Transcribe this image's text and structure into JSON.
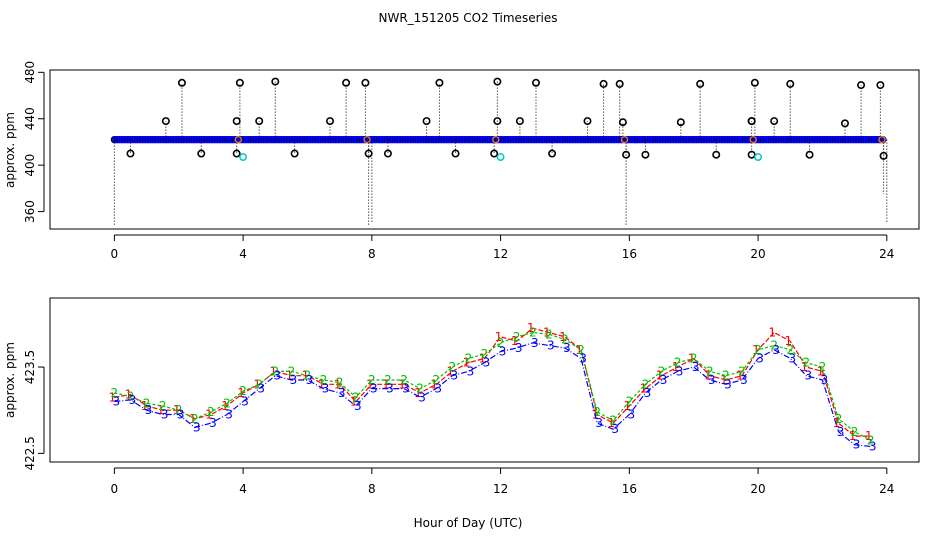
{
  "title": "NWR_151205  CO2 Timeseries",
  "xlabel": "Hour of Day (UTC)",
  "colors": {
    "black": "#000000",
    "blue": "#0000ff",
    "cyan": "#00c8c8",
    "red": "#ff0000",
    "green": "#00c000",
    "orange": "#ff8000"
  },
  "chart_data": [
    {
      "type": "scatter",
      "panel": "top",
      "ylabel": "approx. ppm",
      "xlim": [
        -2,
        25
      ],
      "ylim": [
        345,
        482
      ],
      "xticks": [
        0,
        4,
        8,
        12,
        16,
        20,
        24
      ],
      "yticks": [
        360,
        400,
        440,
        480
      ],
      "baseline_value": 422,
      "series": [
        {
          "name": "baseline (black/blue)",
          "x_range": [
            0,
            23.9
          ],
          "values_approx": 422
        },
        {
          "name": "black high spikes",
          "x": [
            1.6,
            2.1,
            3.9,
            4.5,
            5.0,
            6.7,
            7.2,
            7.8,
            9.7,
            10.1,
            11.9,
            12.6,
            13.1,
            14.7,
            15.2,
            15.7,
            15.8,
            17.6,
            18.2,
            19.8,
            19.9,
            20.5,
            21.0,
            22.7,
            23.2,
            23.8
          ],
          "y": [
            438,
            471,
            471,
            438,
            472,
            438,
            471,
            471,
            438,
            471,
            472,
            438,
            471,
            438,
            470,
            470,
            437,
            437,
            470,
            438,
            471,
            438,
            470,
            436,
            469,
            469
          ]
        },
        {
          "name": "black secondary spikes",
          "x": [
            3.8,
            11.9,
            19.8
          ],
          "y": [
            438,
            438,
            438
          ]
        },
        {
          "name": "black low points",
          "x": [
            0.5,
            2.7,
            3.8,
            5.6,
            7.9,
            8.5,
            10.6,
            11.8,
            13.6,
            15.9,
            16.5,
            18.7,
            19.8,
            21.6,
            23.9
          ],
          "y": [
            410,
            410,
            410,
            410,
            410,
            410,
            410,
            410,
            410,
            409,
            409,
            409,
            409,
            409,
            408
          ]
        },
        {
          "name": "cyan low points",
          "x": [
            4.0,
            12.0,
            20.0
          ],
          "y": [
            407,
            407,
            407
          ]
        },
        {
          "name": "dotted deep dips",
          "x": [
            0.0,
            7.9,
            8.0,
            15.9,
            23.9,
            24.0
          ],
          "y": [
            348,
            348,
            350,
            348,
            375,
            350
          ]
        }
      ]
    },
    {
      "type": "line",
      "panel": "bottom",
      "ylabel": "approx. ppm",
      "xlim": [
        -2,
        25
      ],
      "ylim": [
        422.4,
        424.3
      ],
      "xticks": [
        0,
        4,
        8,
        12,
        16,
        20,
        24
      ],
      "yticks": [
        422.5,
        423.5
      ],
      "marker_labels": [
        "1",
        "2",
        "3"
      ],
      "x": [
        0,
        0.5,
        1,
        1.5,
        2,
        2.5,
        3,
        3.5,
        4,
        4.5,
        5,
        5.5,
        6,
        6.5,
        7,
        7.5,
        8,
        8.5,
        9,
        9.5,
        10,
        10.5,
        11,
        11.5,
        12,
        12.5,
        13,
        13.5,
        14,
        14.5,
        15,
        15.5,
        16,
        16.5,
        17,
        17.5,
        18,
        18.5,
        19,
        19.5,
        20,
        20.5,
        21,
        21.5,
        22,
        22.5,
        23,
        23.5
      ],
      "series": [
        {
          "name": "1",
          "color": "red",
          "values": [
            423.15,
            423.18,
            423.05,
            423.0,
            423.0,
            422.9,
            422.95,
            423.05,
            423.2,
            423.3,
            423.45,
            423.4,
            423.4,
            423.3,
            423.3,
            423.1,
            423.3,
            423.3,
            423.3,
            423.2,
            423.3,
            423.45,
            423.55,
            423.6,
            423.85,
            423.8,
            423.95,
            423.9,
            423.85,
            423.7,
            422.95,
            422.85,
            423.05,
            423.25,
            423.4,
            423.5,
            423.6,
            423.4,
            423.35,
            423.4,
            423.7,
            423.9,
            423.8,
            423.5,
            423.45,
            422.85,
            422.7,
            422.7
          ]
        },
        {
          "name": "2",
          "color": "green",
          "values": [
            423.2,
            423.16,
            423.08,
            423.05,
            423.0,
            422.9,
            422.98,
            423.08,
            423.22,
            423.3,
            423.45,
            423.45,
            423.4,
            423.35,
            423.32,
            423.15,
            423.35,
            423.35,
            423.35,
            423.25,
            423.35,
            423.5,
            423.6,
            423.65,
            423.78,
            423.85,
            423.9,
            423.88,
            423.82,
            423.7,
            422.98,
            422.88,
            423.1,
            423.3,
            423.45,
            423.55,
            423.6,
            423.45,
            423.4,
            423.45,
            423.7,
            423.75,
            423.7,
            423.55,
            423.5,
            422.9,
            422.75,
            422.65
          ]
        },
        {
          "name": "3",
          "color": "blue",
          "values": [
            423.1,
            423.12,
            423.0,
            422.95,
            422.95,
            422.8,
            422.85,
            422.95,
            423.1,
            423.25,
            423.4,
            423.35,
            423.35,
            423.25,
            423.2,
            423.05,
            423.25,
            423.25,
            423.25,
            423.15,
            423.25,
            423.4,
            423.45,
            423.55,
            423.68,
            423.72,
            423.78,
            423.75,
            423.72,
            423.6,
            422.85,
            422.78,
            422.95,
            423.2,
            423.35,
            423.45,
            423.5,
            423.35,
            423.3,
            423.35,
            423.6,
            423.7,
            423.6,
            423.4,
            423.35,
            422.75,
            422.6,
            422.58
          ]
        }
      ]
    }
  ]
}
